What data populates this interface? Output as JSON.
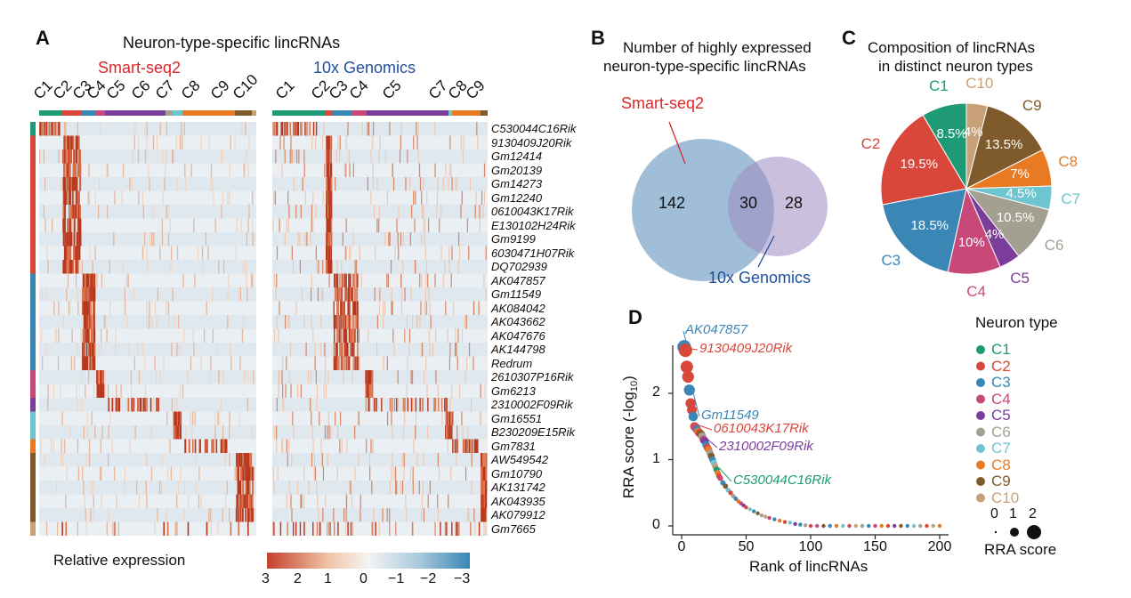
{
  "panelA": {
    "letter": "A",
    "title": "Neuron-type-specific lincRNAs",
    "method_left": "Smart-seq2",
    "method_right": "10x Genomics",
    "clusters_left": [
      "C1",
      "C2",
      "C3",
      "C4",
      "C5",
      "C6",
      "C7",
      "C8",
      "C9",
      "C10"
    ],
    "clusters_right": [
      "C1",
      "C2",
      "C3",
      "C4",
      "C5",
      "C7",
      "C8",
      "C9"
    ],
    "genes": [
      "C530044C16Rik",
      "9130409J20Rik",
      "Gm12414",
      "Gm20139",
      "Gm14273",
      "Gm12240",
      "0610043K17Rik",
      "E130102H24Rik",
      "Gm9199",
      "6030471H07Rik",
      "DQ702939",
      "AK047857",
      "Gm11549",
      "AK084042",
      "AK043662",
      "AK047676",
      "AK144798",
      "Redrum",
      "2610307P16Rik",
      "Gm6213",
      "2310002F09Rik",
      "Gm16551",
      "B230209E15Rik",
      "Gm7831",
      "AW549542",
      "Gm10790",
      "AK131742",
      "AK043935",
      "AK079912",
      "Gm7665"
    ],
    "legend_title": "Relative expression",
    "legend_ticks": [
      "3",
      "2",
      "1",
      "0",
      "−1",
      "−2",
      "−3"
    ]
  },
  "panelB": {
    "letter": "B",
    "title_line1": "Number of highly expressed",
    "title_line2": "neuron-type-specific lincRNAs",
    "label_smart": "Smart-seq2",
    "label_10x": "10x Genomics",
    "only_smart": "142",
    "overlap": "30",
    "only_10x": "28"
  },
  "panelC": {
    "letter": "C",
    "title_line1": "Composition of lincRNAs",
    "title_line2": "in distinct neuron types"
  },
  "panelD": {
    "letter": "D",
    "legend_title": "Neuron type",
    "size_title": "RRA score",
    "size_ticks": [
      "0",
      "1",
      "2"
    ],
    "annotations": [
      {
        "text": "AK047857",
        "cluster": "C3"
      },
      {
        "text": "9130409J20Rik",
        "cluster": "C2"
      },
      {
        "text": "Gm11549",
        "cluster": "C3"
      },
      {
        "text": "0610043K17Rik",
        "cluster": "C2"
      },
      {
        "text": "2310002F09Rik",
        "cluster": "C5"
      },
      {
        "text": "C530044C16Rik",
        "cluster": "C1"
      }
    ]
  },
  "colors": {
    "C1": "#1e9a74",
    "C2": "#d9463a",
    "C3": "#3a86b5",
    "C4": "#c8487a",
    "C5": "#7a3d99",
    "C6": "#a4a091",
    "C7": "#6ec5cf",
    "C8": "#e77a22",
    "C9": "#7f5a2a",
    "C10": "#c9a178",
    "smart": "#d9282a",
    "tenx": "#1f4fa0",
    "venn_left": "#8fb3d0",
    "venn_right": "#9e8bc0"
  },
  "chart_data": [
    {
      "type": "pie",
      "title": "Composition of lincRNAs in distinct neuron types",
      "categories": [
        "C10",
        "C9",
        "C8",
        "C7",
        "C6",
        "C5",
        "C4",
        "C3",
        "C2",
        "C1"
      ],
      "values": [
        4,
        13.5,
        7,
        4.5,
        10.5,
        4,
        10,
        18.5,
        19.5,
        8.5
      ],
      "labels": [
        "4%",
        "13.5%",
        "7%",
        "4.5%",
        "10.5%",
        "4%",
        "10%",
        "18.5%",
        "19.5%",
        "8.5%"
      ]
    },
    {
      "type": "scatter",
      "xlabel": "Rank of lincRNAs",
      "ylabel": "RRA score (-log",
      "ylabel_sub": "10",
      "ylabel_end": ")",
      "xlim": [
        -5,
        205
      ],
      "ylim": [
        -0.1,
        2.9
      ],
      "xticks": [
        0,
        50,
        100,
        150,
        200
      ],
      "yticks": [
        0,
        1,
        2
      ],
      "points": [
        {
          "x": 2,
          "y": 2.7,
          "c": "C3"
        },
        {
          "x": 3,
          "y": 2.65,
          "c": "C2"
        },
        {
          "x": 4,
          "y": 2.4,
          "c": "C2"
        },
        {
          "x": 5,
          "y": 2.25,
          "c": "C2"
        },
        {
          "x": 6,
          "y": 2.05,
          "c": "C3"
        },
        {
          "x": 7,
          "y": 1.85,
          "c": "C2"
        },
        {
          "x": 8,
          "y": 1.75,
          "c": "C2"
        },
        {
          "x": 9,
          "y": 1.65,
          "c": "C3"
        },
        {
          "x": 10,
          "y": 1.5,
          "c": "C2"
        },
        {
          "x": 11,
          "y": 1.48,
          "c": "C4"
        },
        {
          "x": 12,
          "y": 1.45,
          "c": "C3"
        },
        {
          "x": 13,
          "y": 1.42,
          "c": "C8"
        },
        {
          "x": 14,
          "y": 1.4,
          "c": "C2"
        },
        {
          "x": 15,
          "y": 1.38,
          "c": "C9"
        },
        {
          "x": 16,
          "y": 1.35,
          "c": "C6"
        },
        {
          "x": 17,
          "y": 1.3,
          "c": "C4"
        },
        {
          "x": 18,
          "y": 1.28,
          "c": "C5"
        },
        {
          "x": 19,
          "y": 1.22,
          "c": "C3"
        },
        {
          "x": 20,
          "y": 1.18,
          "c": "C2"
        },
        {
          "x": 21,
          "y": 1.15,
          "c": "C8"
        },
        {
          "x": 22,
          "y": 1.1,
          "c": "C6"
        },
        {
          "x": 23,
          "y": 1.05,
          "c": "C9"
        },
        {
          "x": 24,
          "y": 1.0,
          "c": "C3"
        },
        {
          "x": 25,
          "y": 0.95,
          "c": "C7"
        },
        {
          "x": 26,
          "y": 0.9,
          "c": "C10"
        },
        {
          "x": 27,
          "y": 0.85,
          "c": "C1"
        },
        {
          "x": 28,
          "y": 0.8,
          "c": "C8"
        },
        {
          "x": 29,
          "y": 0.75,
          "c": "C2"
        },
        {
          "x": 30,
          "y": 0.72,
          "c": "C4"
        },
        {
          "x": 32,
          "y": 0.65,
          "c": "C3"
        },
        {
          "x": 34,
          "y": 0.6,
          "c": "C9"
        },
        {
          "x": 36,
          "y": 0.54,
          "c": "C7"
        },
        {
          "x": 38,
          "y": 0.5,
          "c": "C2"
        },
        {
          "x": 40,
          "y": 0.45,
          "c": "C6"
        },
        {
          "x": 42,
          "y": 0.41,
          "c": "C3"
        },
        {
          "x": 44,
          "y": 0.37,
          "c": "C8"
        },
        {
          "x": 46,
          "y": 0.34,
          "c": "C4"
        },
        {
          "x": 48,
          "y": 0.31,
          "c": "C5"
        },
        {
          "x": 50,
          "y": 0.28,
          "c": "C2"
        },
        {
          "x": 53,
          "y": 0.25,
          "c": "C7"
        },
        {
          "x": 56,
          "y": 0.22,
          "c": "C3"
        },
        {
          "x": 59,
          "y": 0.19,
          "c": "C9"
        },
        {
          "x": 62,
          "y": 0.16,
          "c": "C6"
        },
        {
          "x": 65,
          "y": 0.14,
          "c": "C10"
        },
        {
          "x": 68,
          "y": 0.12,
          "c": "C4"
        },
        {
          "x": 72,
          "y": 0.1,
          "c": "C3"
        },
        {
          "x": 76,
          "y": 0.08,
          "c": "C8"
        },
        {
          "x": 80,
          "y": 0.06,
          "c": "C2"
        },
        {
          "x": 84,
          "y": 0.05,
          "c": "C7"
        },
        {
          "x": 88,
          "y": 0.03,
          "c": "C5"
        },
        {
          "x": 92,
          "y": 0.02,
          "c": "C3"
        },
        {
          "x": 96,
          "y": 0.01,
          "c": "C6"
        },
        {
          "x": 100,
          "y": 0,
          "c": "C2"
        },
        {
          "x": 105,
          "y": 0,
          "c": "C4"
        },
        {
          "x": 110,
          "y": 0,
          "c": "C9"
        },
        {
          "x": 115,
          "y": 0,
          "c": "C3"
        },
        {
          "x": 120,
          "y": 0,
          "c": "C8"
        },
        {
          "x": 125,
          "y": 0,
          "c": "C7"
        },
        {
          "x": 130,
          "y": 0,
          "c": "C2"
        },
        {
          "x": 135,
          "y": 0,
          "c": "C10"
        },
        {
          "x": 140,
          "y": 0,
          "c": "C6"
        },
        {
          "x": 145,
          "y": 0,
          "c": "C3"
        },
        {
          "x": 150,
          "y": 0,
          "c": "C4"
        },
        {
          "x": 155,
          "y": 0,
          "c": "C8"
        },
        {
          "x": 160,
          "y": 0,
          "c": "C2"
        },
        {
          "x": 165,
          "y": 0,
          "c": "C5"
        },
        {
          "x": 170,
          "y": 0,
          "c": "C9"
        },
        {
          "x": 175,
          "y": 0,
          "c": "C3"
        },
        {
          "x": 180,
          "y": 0,
          "c": "C7"
        },
        {
          "x": 185,
          "y": 0,
          "c": "C6"
        },
        {
          "x": 190,
          "y": 0,
          "c": "C2"
        },
        {
          "x": 195,
          "y": 0,
          "c": "C10"
        },
        {
          "x": 200,
          "y": 0,
          "c": "C8"
        }
      ]
    }
  ]
}
